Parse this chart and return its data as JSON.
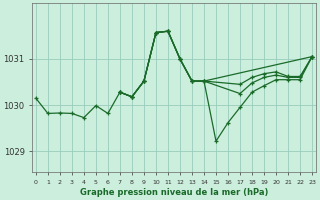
{
  "background_color": "#cceedd",
  "grid_color": "#99ccbb",
  "line_color": "#1a6b2a",
  "xlabel": "Graphe pression niveau de la mer (hPa)",
  "yticks": [
    1029,
    1030,
    1031
  ],
  "xlim": [
    -0.3,
    23.3
  ],
  "ylim": [
    1028.55,
    1032.2
  ],
  "figsize": [
    3.2,
    2.0
  ],
  "dpi": 100,
  "series": [
    {
      "x": [
        0,
        1,
        2,
        3,
        4,
        5,
        6,
        7,
        8,
        9,
        10,
        11,
        12,
        13,
        14,
        15,
        16,
        17,
        18,
        19,
        20,
        21,
        22,
        23
      ],
      "y": [
        1030.15,
        1029.82,
        1029.83,
        1029.82,
        1029.73,
        1029.99,
        1029.82,
        1030.28,
        1030.18,
        1030.52,
        1031.57,
        1031.6,
        1031.0,
        1030.52,
        1030.52,
        1029.22,
        1029.62,
        1029.95,
        1030.28,
        1030.42,
        1030.55,
        1030.55,
        1030.55,
        1031.05
      ]
    },
    {
      "x": [
        7,
        8,
        9,
        10,
        11,
        12,
        13,
        14,
        23
      ],
      "y": [
        1030.28,
        1030.18,
        1030.52,
        1031.57,
        1031.6,
        1031.0,
        1030.52,
        1030.52,
        1031.05
      ]
    },
    {
      "x": [
        7,
        8,
        9,
        10,
        11,
        12,
        13,
        14,
        17,
        18,
        19,
        20,
        21,
        22,
        23
      ],
      "y": [
        1030.28,
        1030.18,
        1030.52,
        1031.57,
        1031.6,
        1031.0,
        1030.52,
        1030.52,
        1030.25,
        1030.48,
        1030.6,
        1030.65,
        1030.6,
        1030.6,
        1031.05
      ]
    },
    {
      "x": [
        7,
        8,
        9,
        10,
        11,
        12,
        13,
        14,
        17,
        18,
        19,
        20,
        21,
        22,
        23
      ],
      "y": [
        1030.28,
        1030.18,
        1030.52,
        1031.57,
        1031.6,
        1031.0,
        1030.52,
        1030.52,
        1030.45,
        1030.6,
        1030.68,
        1030.72,
        1030.62,
        1030.62,
        1031.05
      ]
    }
  ]
}
